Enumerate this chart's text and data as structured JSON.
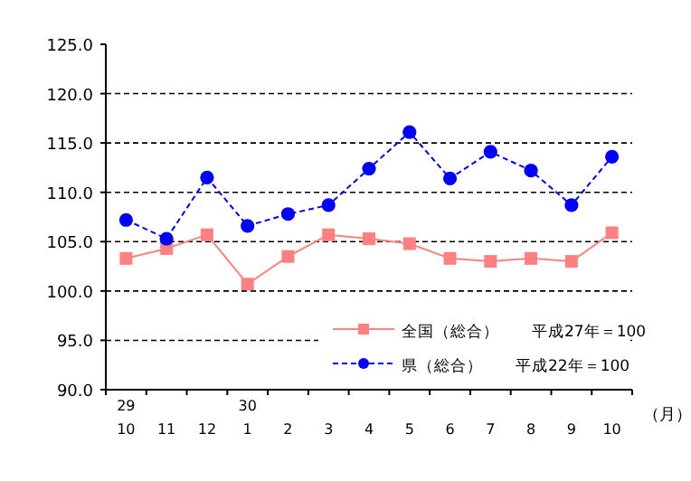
{
  "chart_data": {
    "type": "line",
    "categories": [
      "29\n10",
      "11",
      "12",
      "30\n1",
      "2",
      "3",
      "4",
      "5",
      "6",
      "7",
      "8",
      "9",
      "10"
    ],
    "xlabel": "（月）",
    "series": [
      {
        "name": "全国（総合）　　平成27年＝100",
        "color": "#ff8080",
        "marker": "square",
        "line_style": "solid",
        "values": [
          103.3,
          104.3,
          105.7,
          100.7,
          103.5,
          105.7,
          105.3,
          104.8,
          103.3,
          103.0,
          103.3,
          103.0,
          105.9
        ]
      },
      {
        "name": "県（総合）　　平成22年＝100",
        "color": "#0000ff",
        "marker": "circle",
        "line_style": "dashed",
        "values": [
          107.2,
          105.3,
          111.5,
          106.6,
          107.8,
          108.7,
          112.4,
          116.1,
          111.4,
          114.1,
          112.2,
          108.7,
          113.6
        ]
      }
    ],
    "ylim": [
      90,
      125
    ],
    "yticks": [
      {
        "value": 90,
        "label": "90.0"
      },
      {
        "value": 95,
        "label": "95.0"
      },
      {
        "value": 100,
        "label": "100.0"
      },
      {
        "value": 105,
        "label": "105.0"
      },
      {
        "value": 110,
        "label": "110.0"
      },
      {
        "value": 115,
        "label": "115.0"
      },
      {
        "value": 120,
        "label": "120.0"
      },
      {
        "value": 125,
        "label": "125.0"
      }
    ],
    "grid": "y",
    "legend": "bottom right"
  }
}
